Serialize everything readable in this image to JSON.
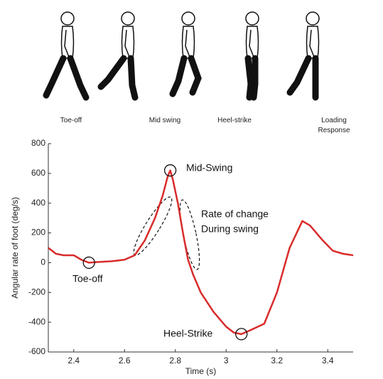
{
  "figures": [
    {
      "label": [
        "Toe-off"
      ]
    },
    {
      "label": [
        "Mid swing"
      ]
    },
    {
      "label": [
        "Heel-strike"
      ]
    },
    {
      "label": [
        "Loading",
        "Response"
      ]
    }
  ],
  "chart_data": {
    "type": "line",
    "xlabel": "Time (s)",
    "ylabel": "Angular rate of foot (deg/s)",
    "x": [
      2.3,
      2.33,
      2.36,
      2.4,
      2.43,
      2.46,
      2.5,
      2.55,
      2.6,
      2.64,
      2.68,
      2.72,
      2.75,
      2.77,
      2.78,
      2.79,
      2.81,
      2.83,
      2.85,
      2.87,
      2.9,
      2.95,
      3.0,
      3.03,
      3.06,
      3.1,
      3.15,
      3.2,
      3.25,
      3.3,
      3.33,
      3.38,
      3.42,
      3.46,
      3.5
    ],
    "series": [
      {
        "color": "#d92b2b",
        "values": [
          100,
          60,
          50,
          50,
          20,
          0,
          5,
          10,
          20,
          50,
          150,
          300,
          450,
          580,
          620,
          560,
          400,
          200,
          20,
          -80,
          -200,
          -330,
          -430,
          -470,
          -480,
          -450,
          -410,
          -200,
          100,
          280,
          250,
          150,
          80,
          60,
          50
        ]
      }
    ],
    "xlim": [
      2.3,
      3.5
    ],
    "xticks": [
      2.4,
      2.6,
      2.8,
      3,
      3.2,
      3.4
    ],
    "ylim": [
      -600,
      800
    ],
    "yticks": [
      -600,
      -400,
      -200,
      0,
      200,
      400,
      600,
      800
    ],
    "annotations": [
      {
        "text": [
          "Toe-off"
        ]
      },
      {
        "text": [
          "Mid-Swing"
        ]
      },
      {
        "text": [
          "Heel-Strike"
        ]
      },
      {
        "text": [
          "Rate of change",
          "During swing"
        ]
      }
    ]
  }
}
